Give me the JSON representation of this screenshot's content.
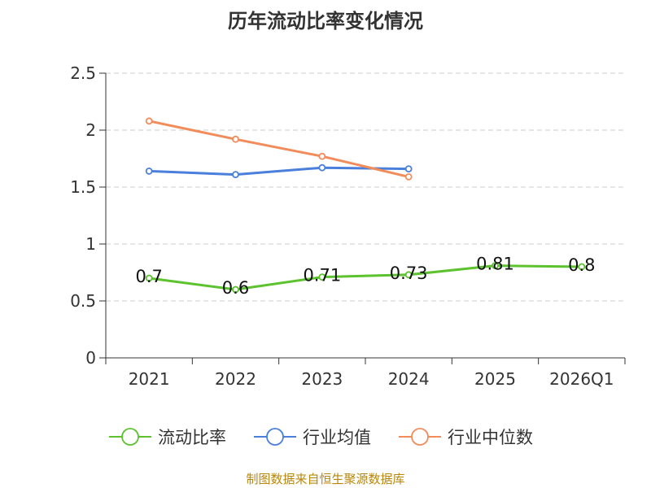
{
  "title": "历年流动比率变化情况",
  "source": "制图数据来自恒生聚源数据库",
  "colors": {
    "current_ratio": "#5cc22e",
    "industry_avg": "#4a7fdb",
    "industry_median": "#f28c5a",
    "grid": "#cccccc",
    "axis": "#333333"
  },
  "chart_data": {
    "type": "line",
    "categories": [
      "2021",
      "2022",
      "2023",
      "2024",
      "2025",
      "2026Q1"
    ],
    "ylim": [
      0,
      2.5
    ],
    "yticks": [
      "0",
      "0.5",
      "1",
      "1.5",
      "2",
      "2.5"
    ],
    "grid": true,
    "legend_position": "bottom",
    "series": [
      {
        "name": "流动比率",
        "values": [
          0.7,
          0.6,
          0.71,
          0.73,
          0.81,
          0.8
        ],
        "labels": [
          "0.7",
          "0.6",
          "0.71",
          "0.73",
          "0.81",
          "0.8"
        ]
      },
      {
        "name": "行业均值",
        "values": [
          1.64,
          1.61,
          1.67,
          1.66,
          null,
          null
        ]
      },
      {
        "name": "行业中位数",
        "values": [
          2.08,
          1.92,
          1.77,
          1.59,
          null,
          null
        ]
      }
    ]
  }
}
